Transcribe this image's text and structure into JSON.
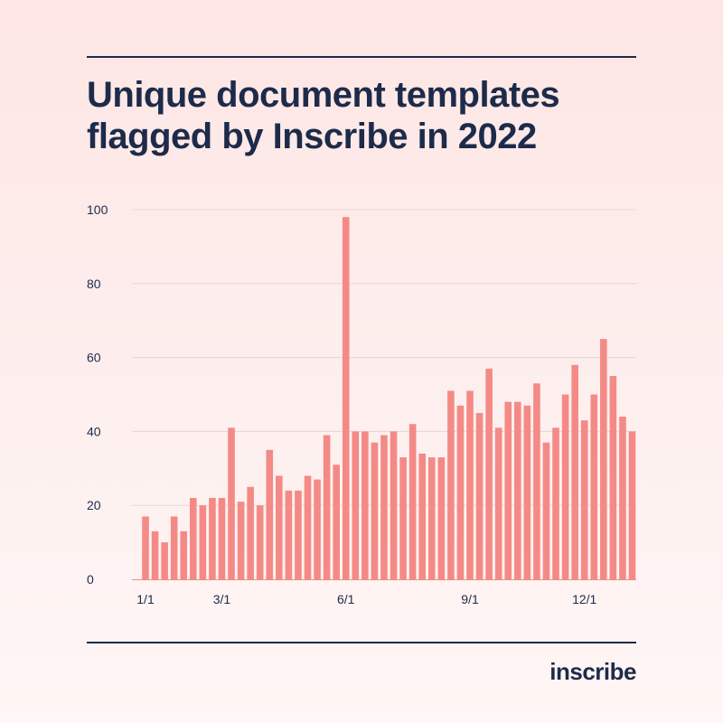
{
  "title_lines": [
    "Unique document templates",
    "flagged by Inscribe in 2022"
  ],
  "logo": "inscribe",
  "colors": {
    "bar": "#f48a86",
    "text": "#1d2b4a",
    "grid": "#e7d4d2"
  },
  "chart_data": {
    "type": "bar",
    "title": "Unique document templates flagged by Inscribe in 2022",
    "xlabel": "",
    "ylabel": "",
    "ylim": [
      0,
      100
    ],
    "yticks": [
      0,
      20,
      40,
      60,
      80,
      100
    ],
    "grid": true,
    "xtick_labels": [
      {
        "label": "1/1",
        "index": 0
      },
      {
        "label": "3/1",
        "index": 8
      },
      {
        "label": "6/1",
        "index": 21
      },
      {
        "label": "9/1",
        "index": 34
      },
      {
        "label": "12/1",
        "index": 46
      }
    ],
    "values": [
      17,
      13,
      10,
      17,
      13,
      22,
      20,
      22,
      22,
      41,
      21,
      25,
      20,
      35,
      28,
      24,
      24,
      28,
      27,
      39,
      31,
      98,
      40,
      40,
      37,
      39,
      40,
      33,
      42,
      34,
      33,
      33,
      51,
      47,
      51,
      45,
      57,
      41,
      48,
      48,
      47,
      53,
      37,
      41,
      50,
      58,
      43,
      50,
      65,
      55,
      44,
      40
    ]
  }
}
